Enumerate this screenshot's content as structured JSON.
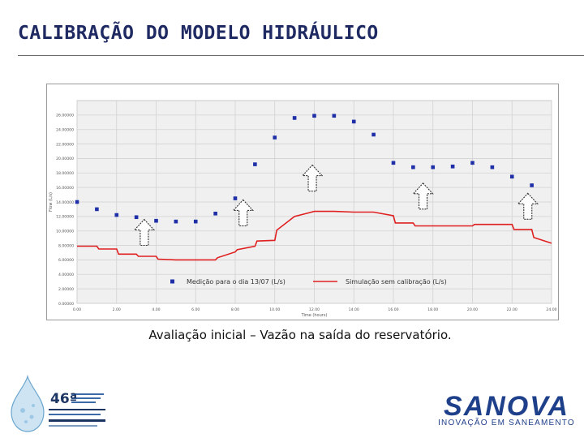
{
  "page": {
    "title": "CALIBRAÇÃO DO MODELO HIDRÁULICO",
    "caption": "Avaliação inicial – Vazão na saída do reservatório."
  },
  "brand": {
    "name": "SANOVA",
    "tagline": "INOVAÇÃO EM SANEAMENTO"
  },
  "event_logo": {
    "number": "46ª"
  },
  "colors": {
    "title": "#1f2a63",
    "measured": "#1f2fa8",
    "simulated": "#e02020",
    "brand": "#1e3f8a"
  },
  "chart_data": {
    "type": "scatter",
    "xlabel": "Time (hours)",
    "ylabel": "Flow (L/s)",
    "xlim": [
      0,
      24
    ],
    "ylim": [
      0,
      28
    ],
    "grid": true,
    "x_ticks": [
      "0.00",
      "2.00",
      "4.00",
      "6.00",
      "8.00",
      "10.00",
      "12.00",
      "14.00",
      "16.00",
      "18.00",
      "20.00",
      "22.00",
      "24.00"
    ],
    "y_ticks": [
      "0.00000",
      "2.00000",
      "4.00000",
      "6.00000",
      "8.00000",
      "10.00000",
      "12.00000",
      "14.00000",
      "16.00000",
      "18.00000",
      "20.00000",
      "22.00000",
      "24.00000",
      "26.00000"
    ],
    "legend_position": "bottom",
    "series": [
      {
        "name": "Medição para o dia 13/07 (L/s)",
        "style": "markers",
        "x": [
          0,
          1,
          2,
          3,
          4,
          5,
          6,
          7,
          8,
          9,
          10,
          11,
          12,
          13,
          14,
          15,
          16,
          17,
          18,
          19,
          20,
          21,
          22,
          23
        ],
        "y": [
          14.0,
          13.0,
          12.2,
          11.9,
          11.4,
          11.3,
          11.3,
          12.4,
          14.5,
          19.2,
          22.9,
          25.6,
          25.9,
          25.9,
          25.1,
          23.3,
          19.4,
          18.8,
          18.8,
          18.9,
          19.4,
          18.8,
          17.5,
          16.3
        ]
      },
      {
        "name": "Simulação sem calibração (L/s)",
        "style": "line",
        "x": [
          0,
          1,
          1.1,
          2,
          2.1,
          3,
          3.1,
          4,
          4.1,
          5,
          6,
          7,
          7.1,
          8,
          8.1,
          9,
          9.1,
          10,
          10.1,
          11,
          12,
          13,
          14,
          15,
          16,
          16.1,
          17,
          17.1,
          18,
          19,
          20,
          20.1,
          21,
          22,
          22.1,
          23,
          23.1,
          24
        ],
        "y": [
          7.9,
          7.9,
          7.5,
          7.5,
          6.8,
          6.8,
          6.5,
          6.5,
          6.1,
          6.0,
          6.0,
          6.0,
          6.3,
          7.1,
          7.4,
          7.9,
          8.6,
          8.7,
          10.1,
          12.0,
          12.7,
          12.7,
          12.6,
          12.6,
          12.1,
          11.1,
          11.1,
          10.7,
          10.7,
          10.7,
          10.7,
          10.9,
          10.9,
          10.9,
          10.2,
          10.2,
          9.1,
          8.3
        ]
      }
    ],
    "annotations": [
      {
        "type": "arrow-up",
        "x": 3.4,
        "y": 9.8
      },
      {
        "type": "arrow-up",
        "x": 8.4,
        "y": 12.5
      },
      {
        "type": "arrow-up",
        "x": 11.9,
        "y": 17.3
      },
      {
        "type": "arrow-up",
        "x": 17.5,
        "y": 14.8
      },
      {
        "type": "arrow-up",
        "x": 22.8,
        "y": 13.4
      }
    ]
  }
}
